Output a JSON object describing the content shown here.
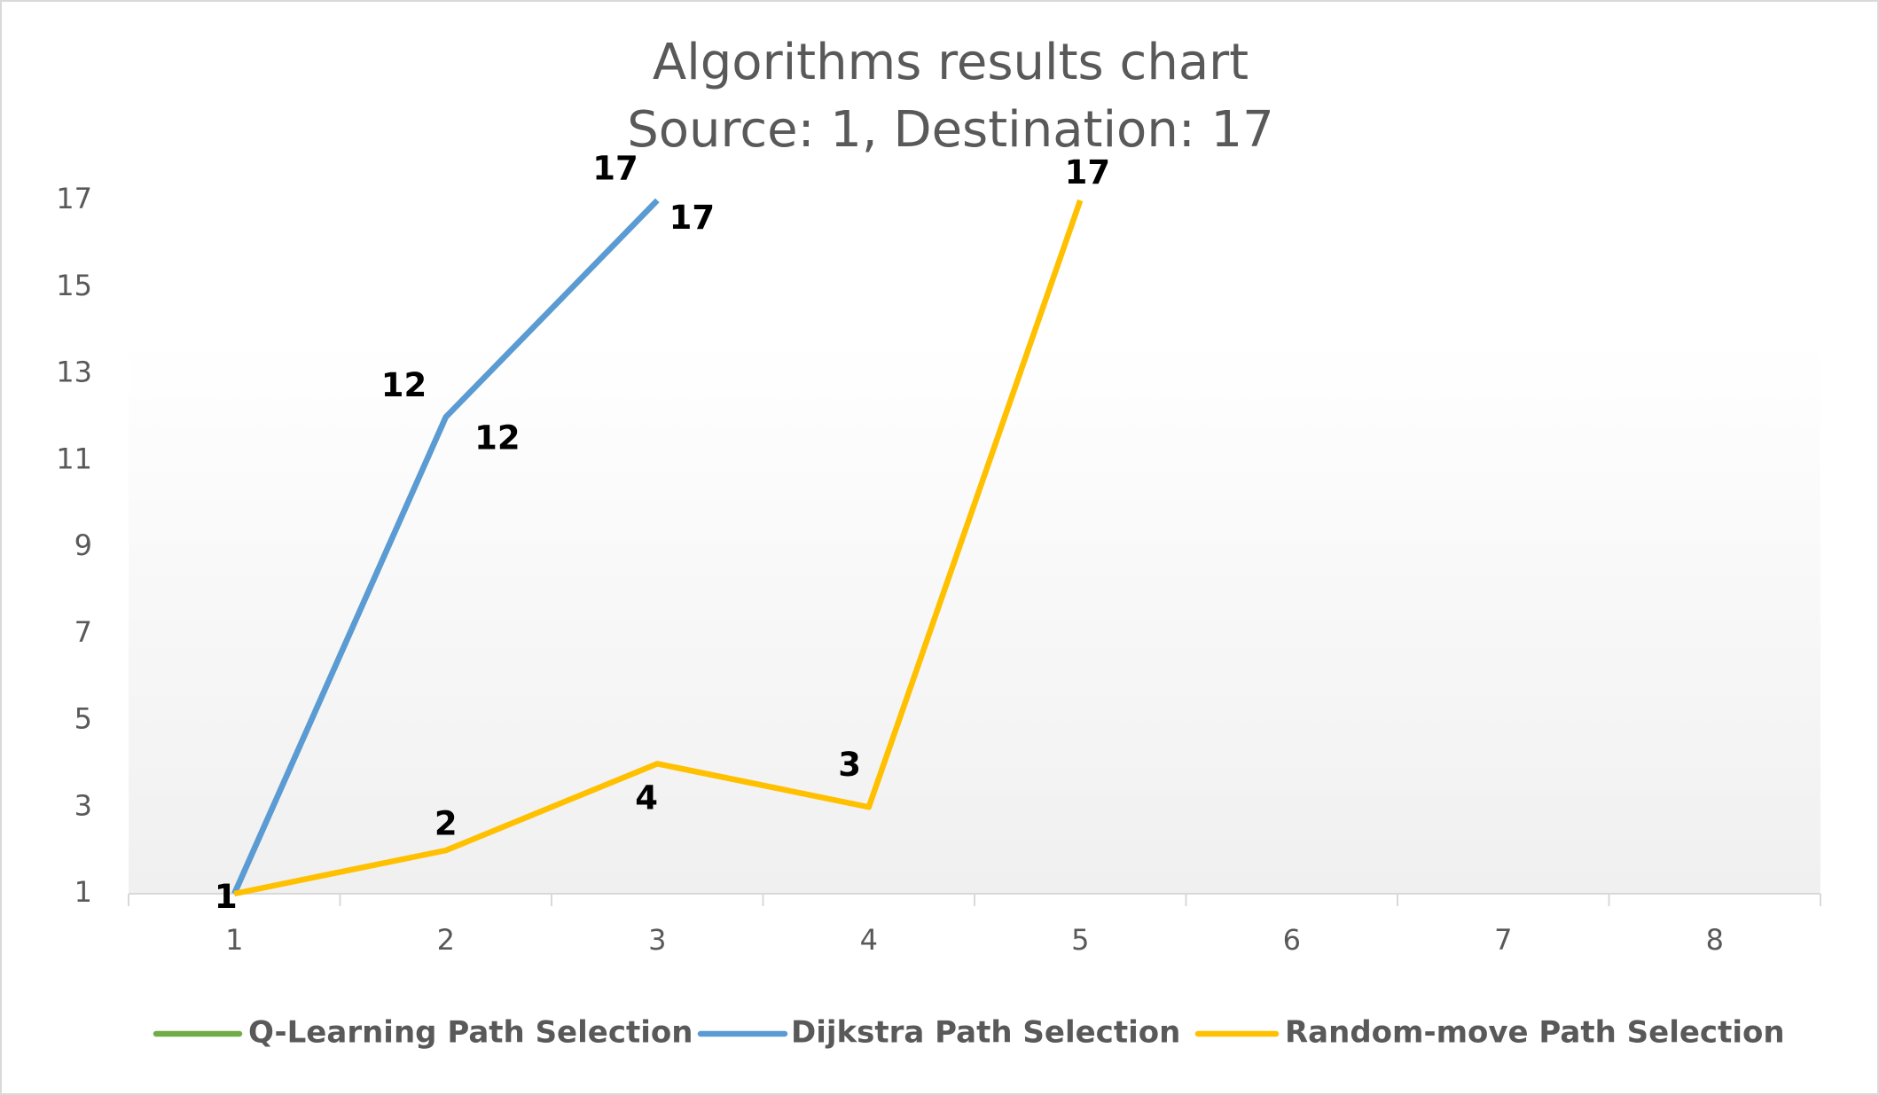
{
  "chart_data": {
    "type": "line",
    "title": "Algorithms results chart",
    "subtitle": "Source: 1, Destination: 17",
    "categories": [
      "1",
      "2",
      "3",
      "4",
      "5",
      "6",
      "7",
      "8"
    ],
    "series": [
      {
        "name": "Q-Learning Path Selection",
        "color": "#70ad47",
        "values": [
          1,
          12,
          17,
          null,
          null,
          null,
          null,
          null
        ]
      },
      {
        "name": "Dijkstra Path Selection",
        "color": "#5b9bd5",
        "values": [
          1,
          12,
          17,
          null,
          null,
          null,
          null,
          null
        ]
      },
      {
        "name": "Random-move Path Selection",
        "color": "#ffc000",
        "values": [
          1,
          2,
          4,
          3,
          17,
          null,
          null,
          null
        ]
      }
    ],
    "ylim": [
      1,
      17
    ],
    "yticks": [
      1,
      3,
      5,
      7,
      9,
      11,
      13,
      15,
      17
    ],
    "grid": false,
    "legend": "bottom",
    "data_labels": true
  }
}
